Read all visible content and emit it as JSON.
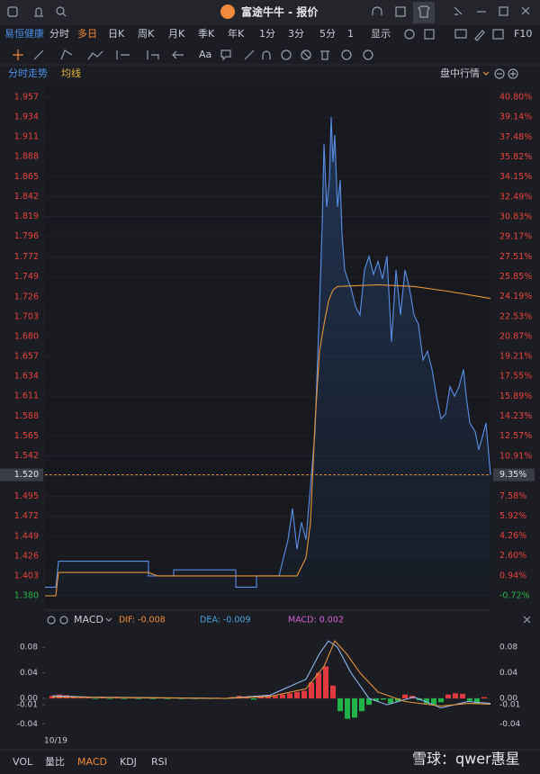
{
  "window": {
    "title": "富途牛牛 - 报价"
  },
  "toolbar": {
    "stock": "易恒健康",
    "periods": [
      "分时",
      "多日",
      "日K",
      "周K",
      "月K",
      "季K",
      "年K",
      "1分",
      "3分",
      "5分",
      "1"
    ],
    "active_period": "多日",
    "display": "显示",
    "f10": "F10"
  },
  "drawing_tools": {
    "text_tool": "Aa"
  },
  "chart_header": {
    "tab": "分时走势",
    "mode": "盘中行情"
  },
  "chart_data": [
    {
      "type": "line",
      "xlim": [
        0,
        495
      ],
      "ylim": [
        1.38,
        1.957
      ],
      "y2lim": [
        -0.72,
        40.8
      ],
      "yticks": [
        1.957,
        1.934,
        1.911,
        1.888,
        1.865,
        1.842,
        1.819,
        1.796,
        1.772,
        1.749,
        1.726,
        1.703,
        {
          "value": 1.68,
          "label": "1.680"
        },
        1.657,
        1.634,
        1.611,
        1.588,
        1.565,
        1.542,
        1.495,
        1.472,
        1.449,
        1.426,
        1.403,
        {
          "value": 1.38,
          "label": "1.380"
        }
      ],
      "y2ticks": [
        {
          "value": 40.8,
          "label": "40.80%"
        },
        {
          "value": 39.14,
          "label": "39.14%"
        },
        {
          "value": 37.48,
          "label": "37.48%"
        },
        {
          "value": 35.82,
          "label": "35.82%"
        },
        {
          "value": 34.15,
          "label": "34.15%"
        },
        {
          "value": 32.49,
          "label": "32.49%"
        },
        {
          "value": 30.83,
          "label": "30.83%"
        },
        {
          "value": 29.17,
          "label": "29.17%"
        },
        {
          "value": 27.51,
          "label": "27.51%"
        },
        {
          "value": 25.85,
          "label": "25.85%"
        },
        {
          "value": 24.19,
          "label": "24.19%"
        },
        {
          "value": 22.53,
          "label": "22.53%"
        },
        {
          "value": 20.87,
          "label": "20.87%"
        },
        {
          "value": 19.21,
          "label": "19.21%"
        },
        {
          "value": 17.55,
          "label": "17.55%"
        },
        {
          "value": 15.89,
          "label": "15.89%"
        },
        {
          "value": 14.23,
          "label": "14.23%"
        },
        {
          "value": 12.57,
          "label": "12.57%"
        },
        {
          "value": 10.91,
          "label": "10.91%"
        },
        {
          "value": 7.58,
          "label": "7.58%"
        },
        {
          "value": 5.92,
          "label": "5.92%"
        },
        {
          "value": 4.26,
          "label": "4.26%"
        },
        {
          "value": 2.6,
          "label": "2.60%"
        },
        {
          "value": 0.94,
          "label": "0.94%"
        },
        {
          "value": -0.72,
          "label": "-0.72%"
        }
      ],
      "current": {
        "value": 1.52,
        "label": "1.520"
      },
      "current_pct": {
        "value": 9.35,
        "label": "9.35%"
      },
      "series": [
        {
          "color": "#5b8fe6",
          "x": [
            0,
            12,
            15,
            115,
            115,
            143,
            143,
            212,
            212,
            235,
            235,
            260,
            270,
            275,
            280,
            285,
            290,
            295,
            300,
            305,
            308,
            310,
            313,
            316,
            318,
            320,
            322,
            325,
            328,
            330,
            333,
            336,
            340,
            345,
            350,
            355,
            360,
            365,
            370,
            375,
            380,
            385,
            390,
            395,
            400,
            405,
            410,
            415,
            420,
            425,
            430,
            435,
            440,
            445,
            450,
            455,
            460,
            465,
            468,
            472,
            478,
            482,
            486,
            490,
            495
          ],
          "values": [
            1.39,
            1.39,
            1.42,
            1.42,
            1.403,
            1.403,
            1.41,
            1.41,
            1.39,
            1.39,
            1.403,
            1.403,
            1.445,
            1.481,
            1.434,
            1.465,
            1.445,
            1.507,
            1.57,
            1.715,
            1.809,
            1.903,
            1.83,
            1.861,
            1.934,
            1.882,
            1.913,
            1.83,
            1.861,
            1.799,
            1.757,
            1.747,
            1.736,
            1.715,
            1.705,
            1.757,
            1.773,
            1.752,
            1.767,
            1.747,
            1.773,
            1.674,
            1.757,
            1.705,
            1.757,
            1.736,
            1.705,
            1.694,
            1.653,
            1.663,
            1.642,
            1.611,
            1.585,
            1.59,
            1.622,
            1.611,
            1.622,
            1.642,
            1.611,
            1.58,
            1.57,
            1.549,
            1.564,
            1.58,
            1.52
          ]
        },
        {
          "name": "均线",
          "color": "#e5953a",
          "x": [
            0,
            12,
            15,
            115,
            125,
            280,
            290,
            295,
            300,
            305,
            310,
            315,
            320,
            325,
            370,
            410,
            450,
            495
          ],
          "values": [
            1.38,
            1.38,
            1.407,
            1.407,
            1.403,
            1.403,
            1.424,
            1.465,
            1.58,
            1.663,
            1.694,
            1.721,
            1.734,
            1.738,
            1.74,
            1.738,
            1.732,
            1.724
          ]
        }
      ]
    },
    {
      "type": "bar",
      "title": "MACD",
      "xlim": [
        0,
        495
      ],
      "ylim": [
        -0.055,
        0.1
      ],
      "yticks": [
        0.08,
        0.04,
        {
          "value": 0,
          "label": "0.00"
        },
        -0.01,
        -0.04
      ],
      "xticks": [
        {
          "value": 12,
          "label": "10/19"
        }
      ],
      "indicators": [
        {
          "label": "DIF: -0.008",
          "color": "#f08a3c"
        },
        {
          "label": "DEA: -0.009",
          "color": "#4aa3df"
        },
        {
          "label": "MACD: 0.002",
          "color": "#d35fd3"
        }
      ],
      "lines": [
        {
          "color": "#8fb6ee",
          "x": [
            8,
            50,
            200,
            250,
            290,
            305,
            315,
            325,
            340,
            360,
            380,
            410,
            440,
            470,
            495
          ],
          "values": [
            0.004,
            0.002,
            0,
            0.005,
            0.03,
            0.07,
            0.09,
            0.08,
            0.04,
            0,
            -0.01,
            0.002,
            -0.015,
            -0.005,
            -0.008
          ]
        },
        {
          "color": "#e5953a",
          "x": [
            8,
            200,
            250,
            290,
            310,
            322,
            335,
            350,
            370,
            400,
            440,
            470,
            495
          ],
          "values": [
            0.002,
            0,
            0.003,
            0.015,
            0.05,
            0.09,
            0.07,
            0.04,
            0.01,
            -0.005,
            -0.012,
            -0.008,
            -0.009
          ]
        }
      ],
      "bars": {
        "up_color": "#e0393e",
        "down_color": "#21b34a",
        "x": [
          8,
          16,
          24,
          32,
          40,
          48,
          56,
          64,
          72,
          80,
          88,
          96,
          104,
          112,
          120,
          128,
          136,
          144,
          152,
          160,
          168,
          176,
          184,
          192,
          200,
          208,
          216,
          224,
          232,
          240,
          248,
          256,
          264,
          272,
          280,
          288,
          296,
          304,
          312,
          320,
          328,
          336,
          344,
          352,
          360,
          368,
          376,
          384,
          392,
          400,
          408,
          416,
          424,
          432,
          440,
          448,
          456,
          464,
          472,
          480,
          488
        ],
        "values": [
          0.004,
          0.006,
          0.005,
          0.003,
          0.001,
          0.001,
          -0.001,
          0.001,
          -0.001,
          0.001,
          -0.001,
          0.001,
          -0.001,
          0.001,
          -0.001,
          0.001,
          -0.001,
          0.001,
          -0.001,
          0.001,
          -0.001,
          0.001,
          -0.001,
          0.001,
          -0.001,
          0.002,
          0.004,
          0.003,
          -0.002,
          0.003,
          0.005,
          0.004,
          0.006,
          0.008,
          0.01,
          0.012,
          0.025,
          0.04,
          0.05,
          0.02,
          -0.02,
          -0.032,
          -0.03,
          -0.02,
          -0.01,
          -0.004,
          -0.002,
          -0.008,
          -0.005,
          0.006,
          0.004,
          -0.003,
          -0.008,
          -0.01,
          -0.006,
          0.006,
          0.008,
          0.007,
          -0.004,
          -0.008,
          0.002
        ]
      }
    }
  ],
  "bottom_tabs": [
    "VOL",
    "量比",
    "MACD",
    "KDJ",
    "RSI"
  ],
  "active_tab": "MACD",
  "watermark": "雪球：qwer惠星"
}
